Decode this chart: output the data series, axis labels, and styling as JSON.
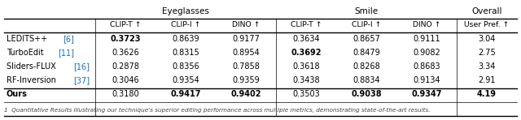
{
  "col_groups": [
    {
      "label": "Eyeglasses",
      "cols": 3
    },
    {
      "label": "Smile",
      "cols": 3
    },
    {
      "label": "Overall",
      "cols": 1
    }
  ],
  "sub_headers": [
    "CLIP-T ↑",
    "CLIP-I ↑",
    "DINO ↑",
    "CLIP-T ↑",
    "CLIP-I ↑",
    "DINO ↑",
    "User Pref. ↑"
  ],
  "row_labels": [
    "LEDITS++ [6]",
    "TurboEdit [11]",
    "Sliders-FLUX [16]",
    "RF-Inversion [37]",
    "Ours"
  ],
  "row_label_parts": [
    [
      "LEDITS++ ",
      "[6]"
    ],
    [
      "TurboEdit ",
      "[11]"
    ],
    [
      "Sliders-FLUX ",
      "[16]"
    ],
    [
      "RF-Inversion ",
      "[37]"
    ],
    [
      "Ours",
      null
    ]
  ],
  "row_label_bold": [
    false,
    false,
    false,
    false,
    true
  ],
  "data": [
    [
      "0.3723",
      "0.8639",
      "0.9177",
      "0.3634",
      "0.8657",
      "0.9111",
      "3.04"
    ],
    [
      "0.3626",
      "0.8315",
      "0.8954",
      "0.3692",
      "0.8479",
      "0.9082",
      "2.75"
    ],
    [
      "0.2878",
      "0.8356",
      "0.7858",
      "0.3618",
      "0.8268",
      "0.8683",
      "3.34"
    ],
    [
      "0.3046",
      "0.9354",
      "0.9359",
      "0.3438",
      "0.8834",
      "0.9134",
      "2.91"
    ],
    [
      "0.3180",
      "0.9417",
      "0.9402",
      "0.3503",
      "0.9038",
      "0.9347",
      "4.19"
    ]
  ],
  "bold_mask": [
    [
      true,
      false,
      false,
      false,
      false,
      false,
      false
    ],
    [
      false,
      false,
      false,
      true,
      false,
      false,
      false
    ],
    [
      false,
      false,
      false,
      false,
      false,
      false,
      false
    ],
    [
      false,
      false,
      false,
      false,
      false,
      false,
      false
    ],
    [
      false,
      true,
      true,
      false,
      true,
      true,
      true
    ]
  ],
  "cite_color": "#1a6faf",
  "caption": "1  Quantitative Results illustrating our technique's superior editing performance across multiple metrics, demonstrating state-of-the-art results.",
  "bg_color": "#ffffff"
}
